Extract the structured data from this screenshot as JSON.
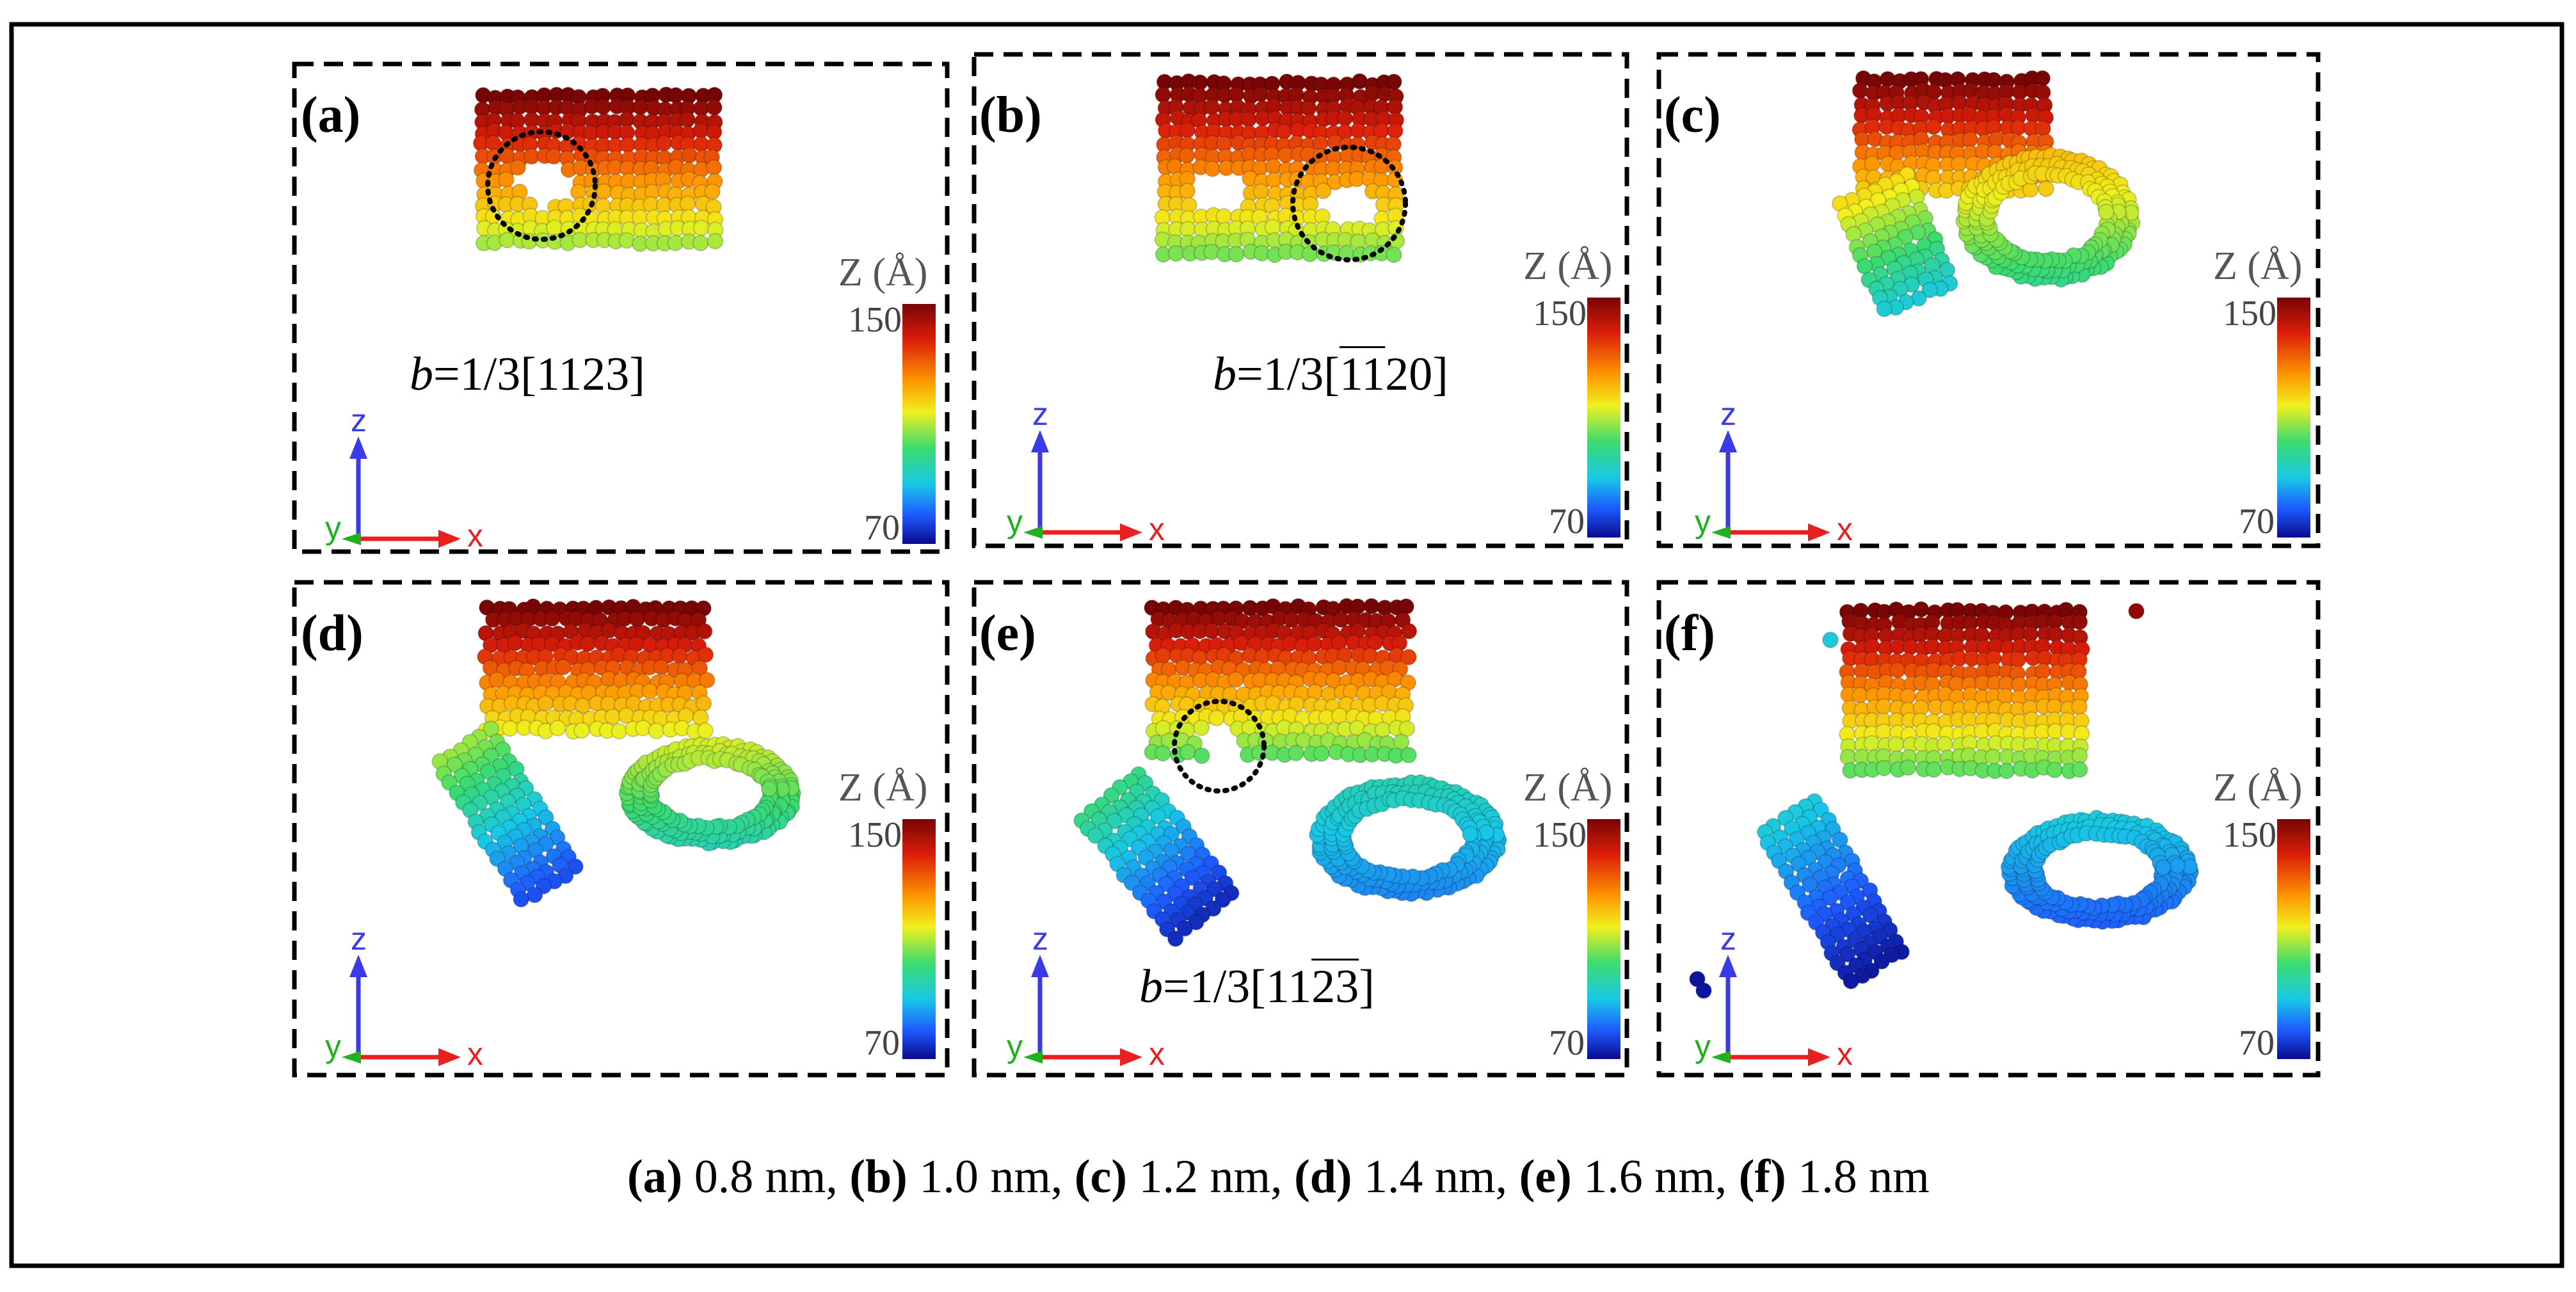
{
  "colors": {
    "scale": [
      "#0a0a8c",
      "#1e5aff",
      "#19c8e6",
      "#3cdc6e",
      "#f0f01e",
      "#ff9600",
      "#dc1e0a",
      "#780505"
    ],
    "axis_z": "#3a3ae8",
    "axis_x": "#e82020",
    "axis_y": "#20b020"
  },
  "colorbar": {
    "title": "Z (Å)",
    "max_label": "150",
    "min_label": "70",
    "max": 150,
    "min": 70
  },
  "axes": {
    "z": "z",
    "x": "x",
    "y": "y"
  },
  "panels": [
    {
      "label": "(a)",
      "burgers": {
        "prefix": "b",
        "text": "=1/3[1123]"
      }
    },
    {
      "label": "(b)",
      "burgers": {
        "prefix": "b",
        "pre": "=1/3[",
        "bars": "11",
        "post": "20]"
      }
    },
    {
      "label": "(c)"
    },
    {
      "label": "(d)"
    },
    {
      "label": "(e)",
      "burgers": {
        "prefix": "b",
        "pre": "=1/3[11",
        "bars": "23",
        "post": "]"
      }
    },
    {
      "label": "(f)"
    }
  ],
  "caption": {
    "a": "(a)",
    "a_val": " 0.8 nm, ",
    "b": "(b)",
    "b_val": " 1.0 nm, ",
    "c": "(c)",
    "c_val": " 1.2 nm, ",
    "d": "(d)",
    "d_val": " 1.4 nm, ",
    "e": "(e)",
    "e_val": " 1.6 nm, ",
    "f": "(f)",
    "f_val": " 1.8 nm"
  }
}
